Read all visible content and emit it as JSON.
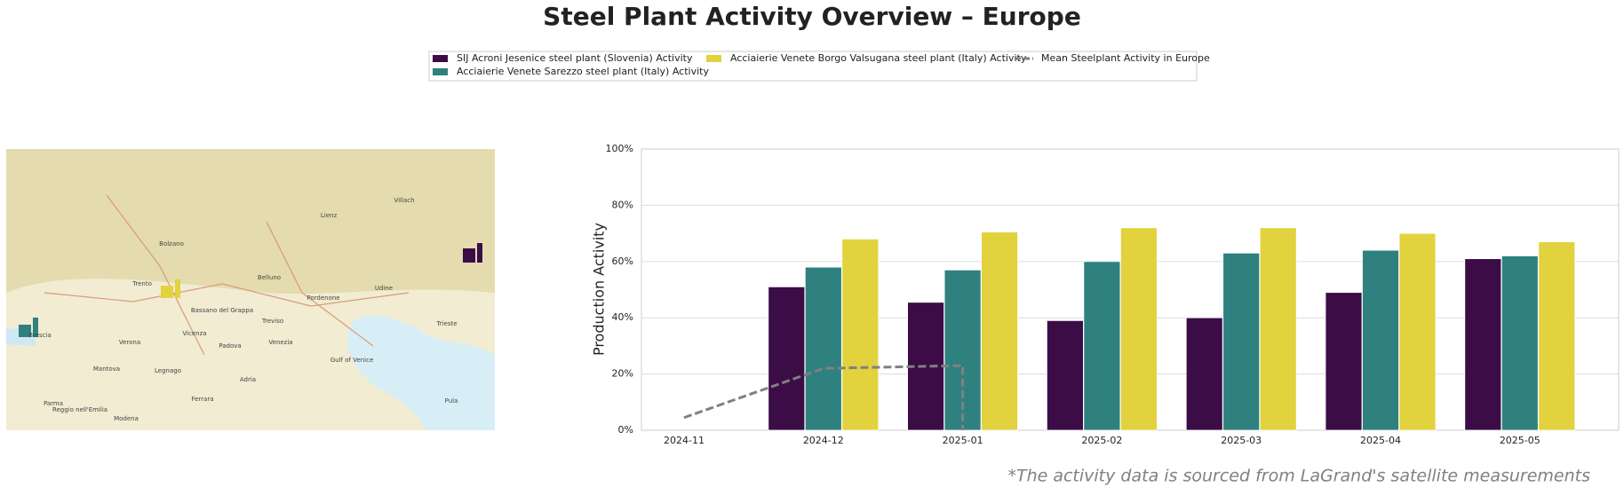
{
  "title": "Steel Plant Activity Overview – Europe",
  "footnote": "*The activity data is sourced from LaGrand's satellite measurements",
  "map": {
    "labels": [
      "Lienz",
      "Villach",
      "Bolzano",
      "Trento",
      "Belluno",
      "Udine",
      "Pordenone",
      "Treviso",
      "Bassano del Grappa",
      "Vicenza",
      "Padova",
      "Venezia",
      "Verona",
      "Brescia",
      "Mantova",
      "Legnago",
      "Adria",
      "Ferrara",
      "Modena",
      "Parma",
      "Reggio nell'Emilia",
      "Trieste",
      "Pula",
      "Gulf of Venice"
    ]
  },
  "chart_data": {
    "type": "bar",
    "ylabel": "Production Activity",
    "categories": [
      "2024-11",
      "2024-12",
      "2025-01",
      "2025-02",
      "2025-03",
      "2025-04",
      "2025-05"
    ],
    "series": [
      {
        "name": "SIJ Acroni Jesenice steel plant (Slovenia) Activity",
        "color": "#3c0c47",
        "values": [
          null,
          51,
          45.5,
          39,
          40,
          49,
          61
        ]
      },
      {
        "name": "Acciaierie Venete Sarezzo steel plant (Italy) Activity",
        "color": "#2e817e",
        "values": [
          null,
          58,
          57,
          60,
          63,
          64,
          62
        ]
      },
      {
        "name": "Acciaierie Venete Borgo Valsugana steel plant (Italy) Activity",
        "color": "#e2d23e",
        "values": [
          null,
          68,
          70.5,
          72,
          72,
          70,
          67
        ]
      }
    ],
    "mean_line": {
      "name": "Mean Steelplant Activity in Europe",
      "color": "#808080",
      "x": [
        "2024-11",
        "2024-12",
        "2025-01",
        "2025-01"
      ],
      "values": [
        4.5,
        22,
        23,
        0
      ]
    },
    "ylim": [
      0,
      100
    ],
    "yticks": [
      {
        "value": 0,
        "label": "0%"
      },
      {
        "value": 20,
        "label": "20%"
      },
      {
        "value": 40,
        "label": "40%"
      },
      {
        "value": 60,
        "label": "60%"
      },
      {
        "value": 80,
        "label": "80%"
      },
      {
        "value": 100,
        "label": "100%"
      }
    ],
    "grid": true
  }
}
